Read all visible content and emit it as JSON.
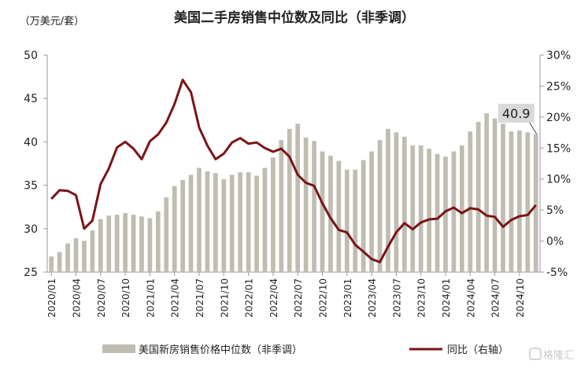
{
  "chart_data": {
    "type": "bar+line",
    "title": "美国二手房销售中位数及同比（非季调）",
    "ylabel_left": "（万美元/套）",
    "ylim_left": [
      25,
      50
    ],
    "yticks_left": [
      "25",
      "30",
      "35",
      "40",
      "45",
      "50"
    ],
    "ylim_right": [
      -5,
      30
    ],
    "yticks_right": [
      "-5%",
      "0%",
      "5%",
      "10%",
      "15%",
      "20%",
      "25%",
      "30%"
    ],
    "categories": [
      "2020/01",
      "2020/02",
      "2020/03",
      "2020/04",
      "2020/05",
      "2020/06",
      "2020/07",
      "2020/08",
      "2020/09",
      "2020/10",
      "2020/11",
      "2020/12",
      "2021/01",
      "2021/02",
      "2021/03",
      "2021/04",
      "2021/05",
      "2021/06",
      "2021/07",
      "2021/08",
      "2021/09",
      "2021/10",
      "2021/11",
      "2021/12",
      "2022/01",
      "2022/02",
      "2022/03",
      "2022/04",
      "2022/05",
      "2022/06",
      "2022/07",
      "2022/08",
      "2022/09",
      "2022/10",
      "2022/11",
      "2022/12",
      "2023/01",
      "2023/02",
      "2023/03",
      "2023/04",
      "2023/05",
      "2023/06",
      "2023/07",
      "2023/08",
      "2023/09",
      "2023/10",
      "2023/11",
      "2023/12",
      "2024/01",
      "2024/02",
      "2024/03",
      "2024/04",
      "2024/05",
      "2024/06",
      "2024/07",
      "2024/08",
      "2024/09",
      "2024/10",
      "2024/11",
      "2024/12"
    ],
    "xtick_labels": [
      "2020/01",
      "2020/04",
      "2020/07",
      "2020/10",
      "2021/01",
      "2021/04",
      "2021/07",
      "2021/10",
      "2022/01",
      "2022/04",
      "2022/07",
      "2022/10",
      "2023/01",
      "2023/04",
      "2023/07",
      "2023/10",
      "2024/01",
      "2024/04",
      "2024/07",
      "2024/10"
    ],
    "series": [
      {
        "name": "美国新房销售价格中位数（非季调）",
        "type": "bar",
        "axis": "left",
        "color": "#bfbdb2",
        "values": [
          26.8,
          27.3,
          28.3,
          28.9,
          28.6,
          29.8,
          31.1,
          31.5,
          31.6,
          31.8,
          31.6,
          31.4,
          31.2,
          32.0,
          33.6,
          34.9,
          35.6,
          36.2,
          37.0,
          36.6,
          36.4,
          35.7,
          36.2,
          36.5,
          36.5,
          36.1,
          37.0,
          38.2,
          40.2,
          41.5,
          42.1,
          40.5,
          40.1,
          38.9,
          38.4,
          37.8,
          36.8,
          36.8,
          37.9,
          38.9,
          40.2,
          41.5,
          41.1,
          40.6,
          39.6,
          39.6,
          39.2,
          38.6,
          38.3,
          38.9,
          39.6,
          41.2,
          42.3,
          43.3,
          42.7,
          42.1,
          41.2,
          41.3,
          41.1,
          40.9
        ]
      },
      {
        "name": "同比（右轴）",
        "type": "line",
        "axis": "right",
        "color": "#7b1416",
        "values": [
          6.8,
          8.2,
          8.1,
          7.4,
          2.0,
          3.3,
          9.2,
          11.7,
          15.1,
          16.0,
          14.9,
          13.2,
          16.1,
          17.2,
          19.1,
          22.1,
          26.0,
          24.0,
          18.3,
          15.4,
          13.2,
          14.1,
          15.9,
          16.6,
          15.7,
          15.9,
          15.0,
          14.4,
          14.9,
          13.6,
          10.7,
          9.4,
          8.9,
          6.1,
          3.7,
          1.8,
          1.4,
          -0.6,
          -1.7,
          -2.9,
          -3.4,
          -0.9,
          1.4,
          2.9,
          1.9,
          3.0,
          3.5,
          3.6,
          4.8,
          5.4,
          4.5,
          5.3,
          5.1,
          4.1,
          3.9,
          2.3,
          3.4,
          4.0,
          4.2,
          5.8
        ]
      }
    ],
    "annotation": {
      "text": "40.9",
      "category": "2024/12"
    },
    "legend_placement": "bottom"
  },
  "watermark": "格隆汇"
}
